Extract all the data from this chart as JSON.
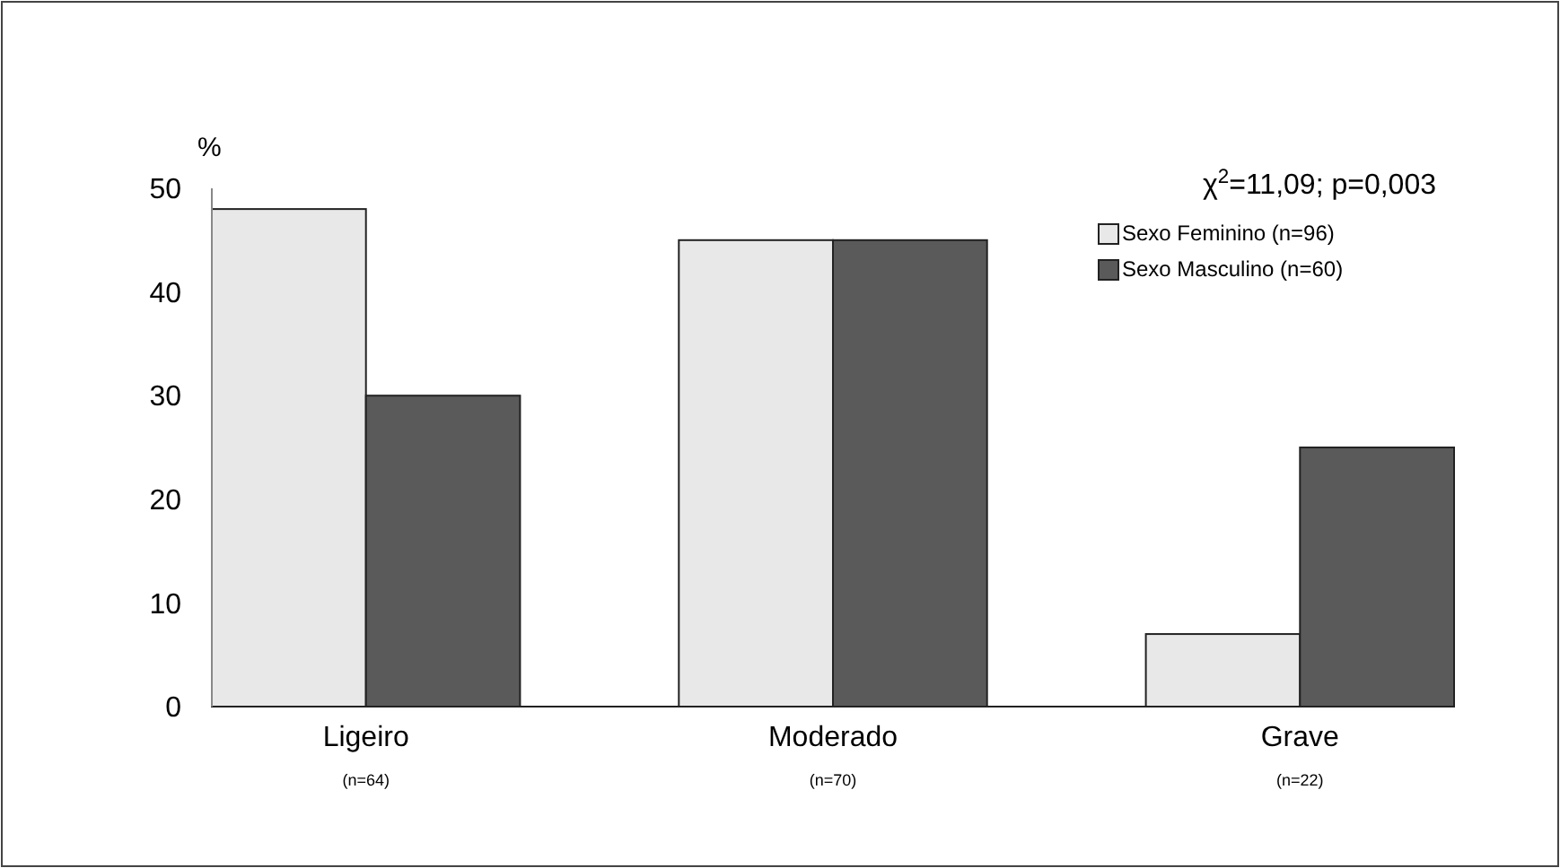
{
  "chart_data": {
    "type": "bar",
    "ylabel": "%",
    "categories": [
      "Ligeiro\n(n=64)",
      "Moderado\n(n=70)",
      "Grave\n(n=22)"
    ],
    "series": [
      {
        "name": "Sexo Feminino (n=96)",
        "color": "#e8e8e8",
        "values": [
          48,
          45,
          7
        ]
      },
      {
        "name": "Sexo Masculino (n=60)",
        "color": "#5a5a5a",
        "values": [
          30,
          45,
          25
        ]
      }
    ],
    "ylim": [
      0,
      50
    ],
    "yticks": [
      0,
      10,
      20,
      30,
      40,
      50
    ],
    "grid": false,
    "legend": "top right",
    "annotations": [
      "χ$^{2}$=11,09; p=0,003"
    ]
  }
}
